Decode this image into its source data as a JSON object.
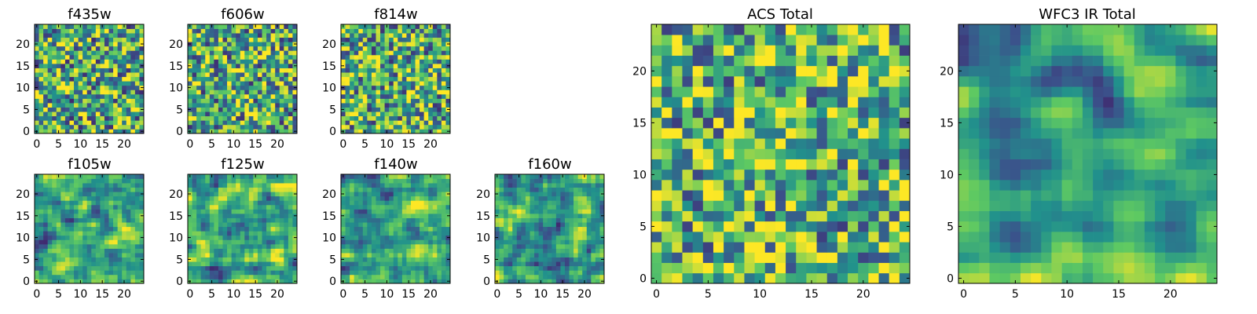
{
  "figure": {
    "colormap": {
      "name": "viridis",
      "stops": [
        "#440154",
        "#3b528b",
        "#21918c",
        "#5ec962",
        "#fde725"
      ]
    }
  },
  "chart_data": [
    {
      "type": "heatmap",
      "title": "f435w",
      "grid_size": [
        25,
        25
      ],
      "xlim": [
        -0.5,
        24.5
      ],
      "ylim": [
        -0.5,
        24.5
      ],
      "xticks": [
        0,
        5,
        10,
        15,
        20
      ],
      "yticks": [
        0,
        5,
        10,
        15,
        20
      ],
      "value_range": [
        0,
        1
      ],
      "seed": 435,
      "smoothness": 0,
      "mean_level": 0.6
    },
    {
      "type": "heatmap",
      "title": "f606w",
      "grid_size": [
        25,
        25
      ],
      "xlim": [
        -0.5,
        24.5
      ],
      "ylim": [
        -0.5,
        24.5
      ],
      "xticks": [
        0,
        5,
        10,
        15,
        20
      ],
      "yticks": [
        0,
        5,
        10,
        15,
        20
      ],
      "value_range": [
        0,
        1
      ],
      "seed": 606,
      "smoothness": 0,
      "mean_level": 0.62
    },
    {
      "type": "heatmap",
      "title": "f814w",
      "grid_size": [
        25,
        25
      ],
      "xlim": [
        -0.5,
        24.5
      ],
      "ylim": [
        -0.5,
        24.5
      ],
      "xticks": [
        0,
        5,
        10,
        15,
        20
      ],
      "yticks": [
        0,
        5,
        10,
        15,
        20
      ],
      "value_range": [
        0,
        1
      ],
      "seed": 814,
      "smoothness": 0,
      "mean_level": 0.63
    },
    {
      "type": "heatmap",
      "title": "f105w",
      "grid_size": [
        25,
        25
      ],
      "xlim": [
        -0.5,
        24.5
      ],
      "ylim": [
        -0.5,
        24.5
      ],
      "xticks": [
        0,
        5,
        10,
        15,
        20
      ],
      "yticks": [
        0,
        5,
        10,
        15,
        20
      ],
      "value_range": [
        0,
        1
      ],
      "seed": 105,
      "smoothness": 1,
      "mean_level": 0.6
    },
    {
      "type": "heatmap",
      "title": "f125w",
      "grid_size": [
        25,
        25
      ],
      "xlim": [
        -0.5,
        24.5
      ],
      "ylim": [
        -0.5,
        24.5
      ],
      "xticks": [
        0,
        5,
        10,
        15,
        20
      ],
      "yticks": [
        0,
        5,
        10,
        15,
        20
      ],
      "value_range": [
        0,
        1
      ],
      "seed": 125,
      "smoothness": 1,
      "mean_level": 0.6
    },
    {
      "type": "heatmap",
      "title": "f140w",
      "grid_size": [
        25,
        25
      ],
      "xlim": [
        -0.5,
        24.5
      ],
      "ylim": [
        -0.5,
        24.5
      ],
      "xticks": [
        0,
        5,
        10,
        15,
        20
      ],
      "yticks": [
        0,
        5,
        10,
        15,
        20
      ],
      "value_range": [
        0,
        1
      ],
      "seed": 140,
      "smoothness": 1,
      "mean_level": 0.62
    },
    {
      "type": "heatmap",
      "title": "f160w",
      "grid_size": [
        25,
        25
      ],
      "xlim": [
        -0.5,
        24.5
      ],
      "ylim": [
        -0.5,
        24.5
      ],
      "xticks": [
        0,
        5,
        10,
        15,
        20
      ],
      "yticks": [
        0,
        5,
        10,
        15,
        20
      ],
      "value_range": [
        0,
        1
      ],
      "seed": 160,
      "smoothness": 1,
      "mean_level": 0.6
    },
    {
      "type": "heatmap",
      "title": "ACS Total",
      "grid_size": [
        25,
        25
      ],
      "xlim": [
        -0.5,
        24.5
      ],
      "ylim": [
        -0.5,
        24.5
      ],
      "xticks": [
        0,
        5,
        10,
        15,
        20
      ],
      "yticks": [
        0,
        5,
        10,
        15,
        20
      ],
      "value_range": [
        0,
        1
      ],
      "seed": 777,
      "smoothness": 0,
      "mean_level": 0.66
    },
    {
      "type": "heatmap",
      "title": "WFC3 IR Total",
      "grid_size": [
        25,
        25
      ],
      "xlim": [
        -0.5,
        24.5
      ],
      "ylim": [
        -0.5,
        24.5
      ],
      "xticks": [
        0,
        5,
        10,
        15,
        20
      ],
      "yticks": [
        0,
        5,
        10,
        15,
        20
      ],
      "value_range": [
        0,
        1
      ],
      "seed": 999,
      "smoothness": 2,
      "mean_level": 0.58,
      "central_excess": 0.22
    }
  ]
}
